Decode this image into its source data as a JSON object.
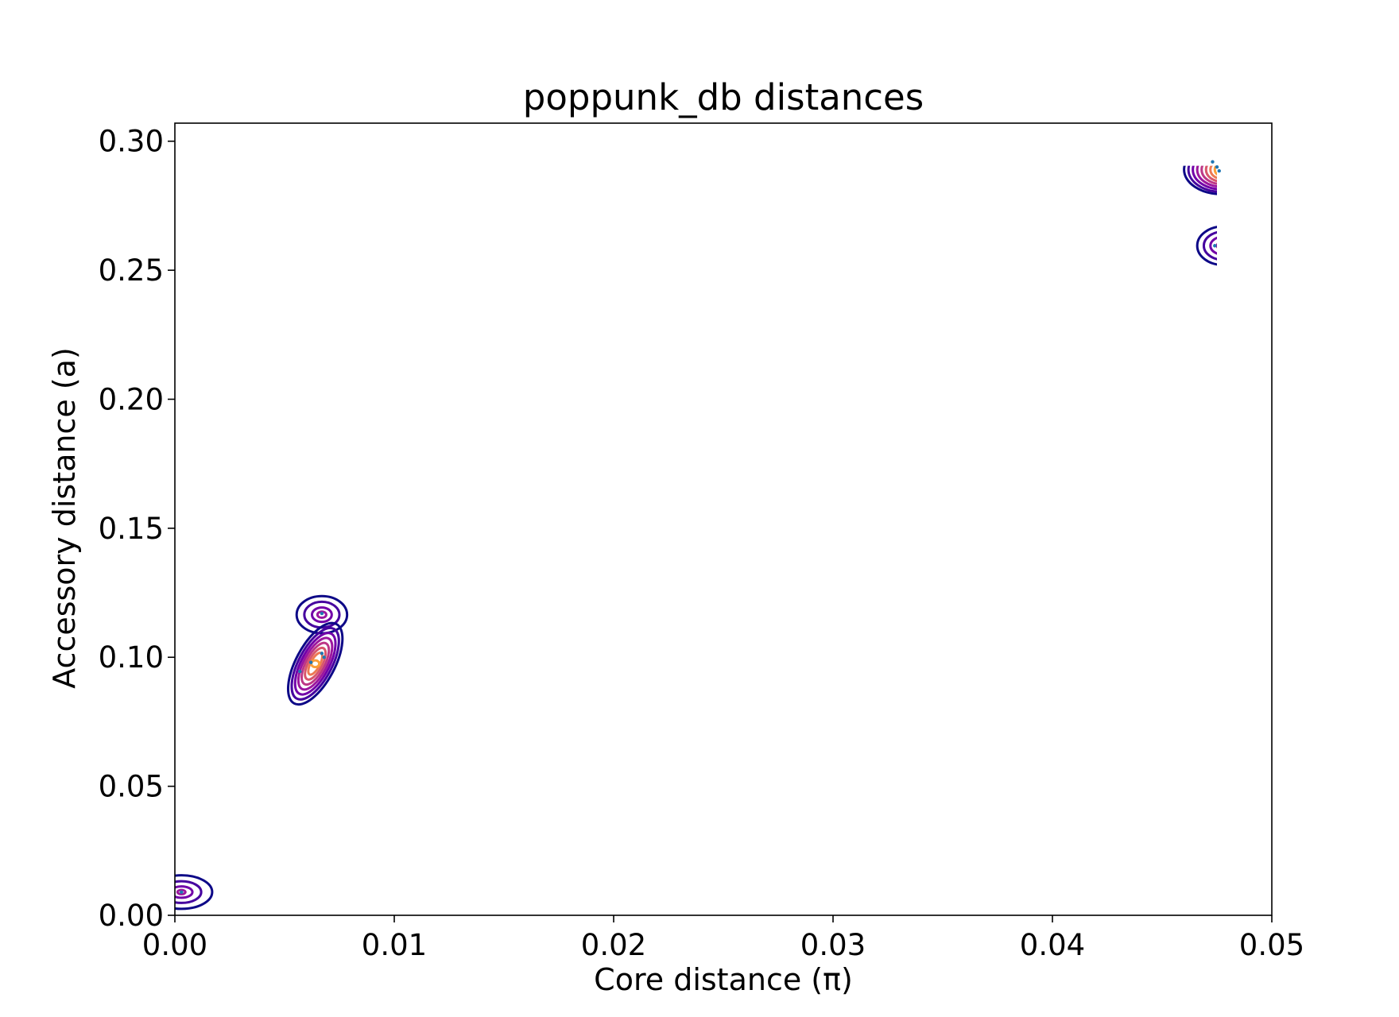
{
  "chart_data": {
    "type": "contour",
    "title": "poppunk_db distances",
    "xlabel": "Core distance (π)",
    "ylabel": "Accessory distance (a)",
    "xlim": [
      0.0,
      0.05
    ],
    "ylim": [
      0.0,
      0.307
    ],
    "xticks": [
      "0.00",
      "0.01",
      "0.02",
      "0.03",
      "0.04",
      "0.05"
    ],
    "yticks": [
      "0.00",
      "0.05",
      "0.10",
      "0.15",
      "0.20",
      "0.25",
      "0.30"
    ],
    "grid": false,
    "legend": "none",
    "colormap": "plasma",
    "level_colors": [
      "#0d0887",
      "#46039f",
      "#7201a8",
      "#9c179e",
      "#bd3786",
      "#d8576b",
      "#ed7953",
      "#fb9f3a",
      "#fdca26",
      "#f0f921"
    ],
    "point_color": "#1f77b4",
    "clusters": [
      {
        "center": [
          0.0003,
          0.009
        ],
        "contours": [
          {
            "level": 0,
            "rx": 0.0014,
            "ry": 0.0065,
            "rot": 0,
            "clip_x": 0.0
          },
          {
            "level": 1,
            "rx": 0.0009,
            "ry": 0.0042,
            "rot": 0,
            "clip_x": 0.0
          },
          {
            "level": 2,
            "rx": 0.0005,
            "ry": 0.0022,
            "rot": 0,
            "clip_x": 0.0
          },
          {
            "level": 3,
            "rx": 0.00018,
            "ry": 0.0008,
            "rot": 0,
            "clip_x": 0.0
          }
        ],
        "points": [
          [
            0.0003,
            0.009
          ]
        ]
      },
      {
        "center": [
          0.0067,
          0.1165
        ],
        "contours": [
          {
            "level": 0,
            "rx": 0.00115,
            "ry": 0.0072,
            "rot": 0
          },
          {
            "level": 1,
            "rx": 0.0008,
            "ry": 0.005,
            "rot": 0
          },
          {
            "level": 2,
            "rx": 0.00045,
            "ry": 0.0028,
            "rot": 0
          },
          {
            "level": 3,
            "rx": 0.0002,
            "ry": 0.0012,
            "rot": 0
          }
        ],
        "points": [
          [
            0.0067,
            0.117
          ]
        ]
      },
      {
        "center": [
          0.0064,
          0.0975
        ],
        "contours": [
          {
            "level": 0,
            "rx": 0.00205,
            "ry": 0.0075,
            "rot": -62
          },
          {
            "level": 1,
            "rx": 0.0018,
            "ry": 0.0064,
            "rot": -62
          },
          {
            "level": 2,
            "rx": 0.00155,
            "ry": 0.0054,
            "rot": -62
          },
          {
            "level": 3,
            "rx": 0.0013,
            "ry": 0.0045,
            "rot": -62
          },
          {
            "level": 4,
            "rx": 0.00105,
            "ry": 0.0036,
            "rot": -62
          },
          {
            "level": 5,
            "rx": 0.0008,
            "ry": 0.0027,
            "rot": -62
          },
          {
            "level": 6,
            "rx": 0.00055,
            "ry": 0.0018,
            "rot": -62
          },
          {
            "level": 7,
            "rx": 0.00018,
            "ry": 0.0013,
            "rot": 0
          }
        ],
        "points": [
          [
            0.0057,
            0.0945
          ],
          [
            0.0067,
            0.1015
          ],
          [
            0.0068,
            0.1
          ],
          [
            0.0062,
            0.098
          ]
        ]
      },
      {
        "center": [
          0.0477,
          0.289
        ],
        "contours": [
          {
            "level": 0,
            "rx": 0.0017,
            "ry": 0.0095,
            "rot": 0,
            "clip_x": 0.0475,
            "clip_y": 0.2905
          },
          {
            "level": 1,
            "rx": 0.0015,
            "ry": 0.0086,
            "rot": 0,
            "clip_x": 0.0475,
            "clip_y": 0.2905
          },
          {
            "level": 2,
            "rx": 0.0013,
            "ry": 0.0076,
            "rot": 0,
            "clip_x": 0.0475,
            "clip_y": 0.2905
          },
          {
            "level": 3,
            "rx": 0.0011,
            "ry": 0.0066,
            "rot": 0,
            "clip_x": 0.0475,
            "clip_y": 0.2905
          },
          {
            "level": 4,
            "rx": 0.0009,
            "ry": 0.0056,
            "rot": 0,
            "clip_x": 0.0475,
            "clip_y": 0.2905
          },
          {
            "level": 5,
            "rx": 0.0007,
            "ry": 0.0046,
            "rot": 0,
            "clip_x": 0.0475,
            "clip_y": 0.2905
          },
          {
            "level": 6,
            "rx": 0.0005,
            "ry": 0.0035,
            "rot": 0,
            "clip_x": 0.0475,
            "clip_y": 0.2905
          },
          {
            "level": 7,
            "rx": 0.0003,
            "ry": 0.0024,
            "rot": 0,
            "clip_x": 0.0475,
            "clip_y": 0.2905
          }
        ],
        "points": [
          [
            0.0473,
            0.292
          ],
          [
            0.0475,
            0.29
          ],
          [
            0.0476,
            0.2885
          ]
        ]
      },
      {
        "center": [
          0.0478,
          0.2595
        ],
        "contours": [
          {
            "level": 0,
            "rx": 0.0012,
            "ry": 0.0075,
            "rot": 0,
            "clip_x": 0.0475
          },
          {
            "level": 1,
            "rx": 0.0009,
            "ry": 0.0055,
            "rot": 0,
            "clip_x": 0.0475
          },
          {
            "level": 2,
            "rx": 0.0006,
            "ry": 0.0035,
            "rot": 0,
            "clip_x": 0.0475
          },
          {
            "level": 3,
            "rx": 0.0003,
            "ry": 0.0015,
            "rot": 0,
            "clip_x": 0.0475
          }
        ],
        "points": [
          [
            0.0474,
            0.2595
          ]
        ]
      }
    ]
  }
}
